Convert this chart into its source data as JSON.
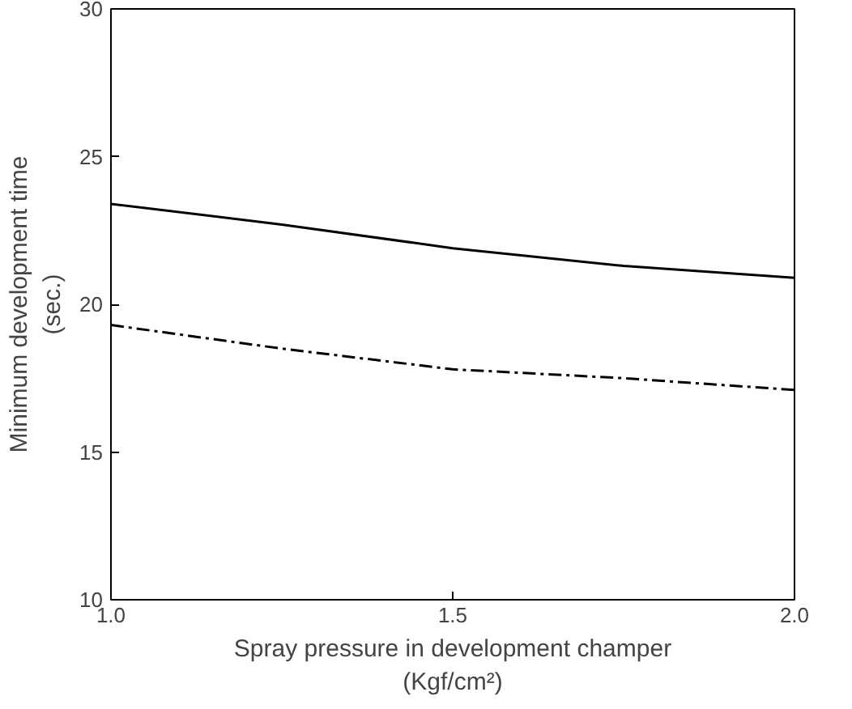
{
  "chart_data": {
    "type": "line",
    "xlabel": "Spray pressure in development champer\n(Kgf/cm²)",
    "ylabel": "Minimum development time\n(sec.)",
    "x": [
      1.0,
      1.25,
      1.5,
      1.75,
      2.0
    ],
    "series": [
      {
        "color": "#000000",
        "line_style": "dashed",
        "values": [
          19.3,
          18.5,
          17.8,
          17.5,
          17.1
        ]
      },
      {
        "color": "#000000",
        "line_style": "solid",
        "values": [
          23.4,
          22.7,
          21.9,
          21.3,
          20.9
        ]
      }
    ],
    "xlim": [
      1.0,
      2.0
    ],
    "xticks": [
      {
        "value": 1.0,
        "label": "1.0"
      },
      {
        "value": 1.5,
        "label": "1.5"
      },
      {
        "value": 2.0,
        "label": "2.0"
      }
    ],
    "ylim": [
      10,
      30
    ],
    "yticks": [
      10,
      15,
      20,
      25,
      30
    ],
    "grid": false
  }
}
